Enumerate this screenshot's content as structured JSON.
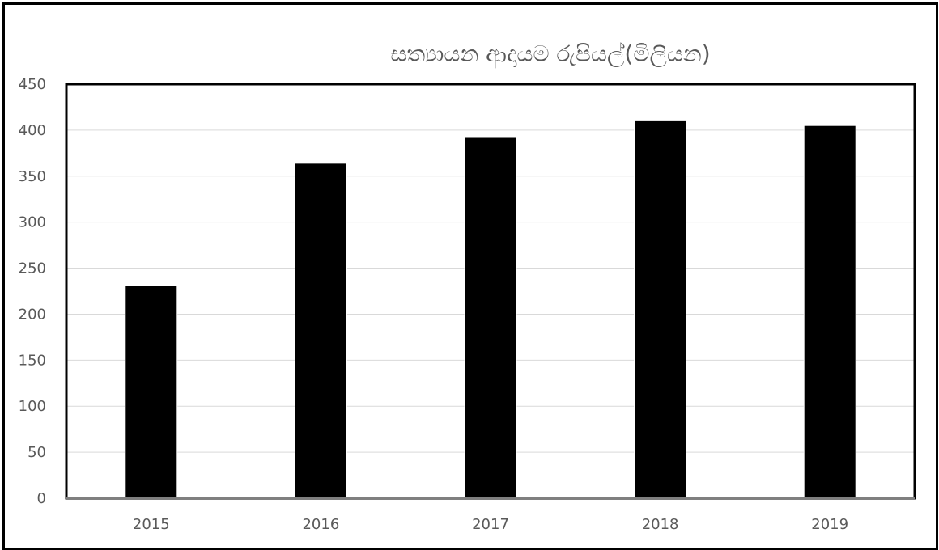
{
  "chart_data": {
    "type": "bar",
    "title": "සත්‍යායන ආදායම රුපියල්(මිලියන)",
    "xlabel": "",
    "ylabel": "",
    "categories": [
      "2015",
      "2016",
      "2017",
      "2018",
      "2019"
    ],
    "values": [
      231,
      364,
      392,
      411,
      405
    ],
    "ylim": [
      0,
      450
    ],
    "yticks": [
      0,
      50,
      100,
      150,
      200,
      250,
      300,
      350,
      400,
      450
    ],
    "grid": true,
    "legend": "none",
    "colors": {
      "bar": "#000000",
      "grid": "#d9d9d9",
      "text": "#595959",
      "frame": "#000000"
    }
  }
}
